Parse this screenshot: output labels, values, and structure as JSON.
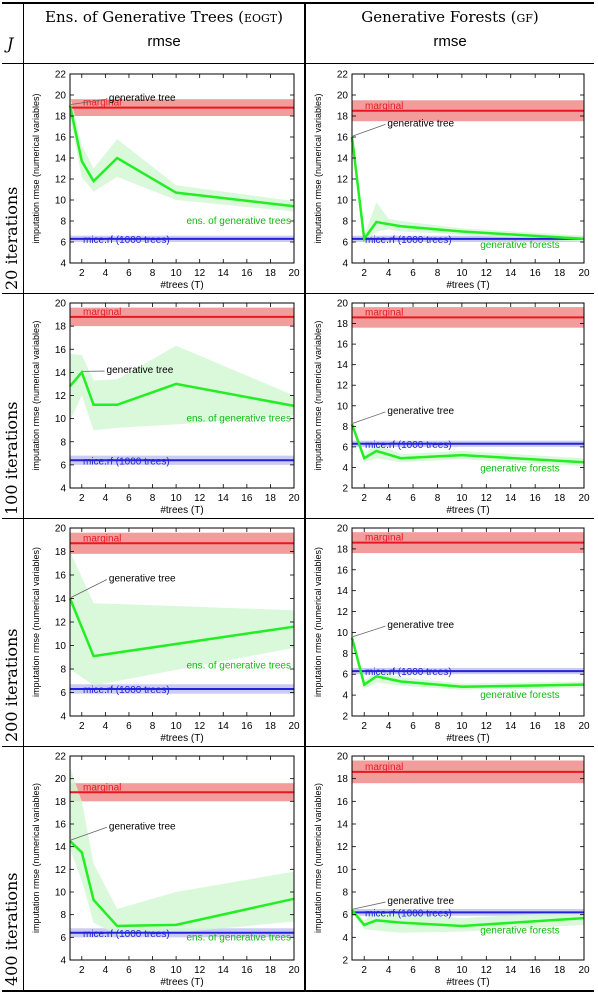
{
  "table": {
    "corner_label": "J",
    "columns": [
      {
        "title": "Ens. of Generative Trees",
        "title_abbrev": "EOGT",
        "metric": "rmse"
      },
      {
        "title": "Generative Forests",
        "title_abbrev": "GF",
        "metric": "rmse"
      }
    ],
    "rows": [
      "20 iterations",
      "100 iterations",
      "200 iterations",
      "400 iterations"
    ]
  },
  "colors": {
    "marginal": "#e8191e",
    "marginal_band": "#f08b8b",
    "mice": "#2222dd",
    "mice_band": "#c7c7f2",
    "curve": "#22ee22",
    "curve_band": "#d4f7d4"
  },
  "chart_data": [
    {
      "type": "line",
      "panel": "EOGT - 20 iterations",
      "xlabel": "#trees (T)",
      "ylabel": "imputation rmse (numerical variables)",
      "xlim": [
        1,
        20
      ],
      "ylim": [
        4,
        22
      ],
      "xticks": [
        2,
        4,
        6,
        8,
        10,
        12,
        14,
        16,
        18,
        20
      ],
      "yticks": [
        4,
        6,
        8,
        10,
        12,
        14,
        16,
        18,
        20,
        22
      ],
      "series": [
        {
          "name": "ens. of generative trees",
          "x": [
            1,
            2,
            3,
            5,
            10,
            20
          ],
          "y": [
            19.0,
            13.7,
            11.8,
            14.0,
            10.7,
            9.4
          ],
          "lower": [
            17.8,
            12.2,
            10.8,
            12.2,
            10.0,
            8.9
          ],
          "upper": [
            20.0,
            15.2,
            13.0,
            15.8,
            11.4,
            9.9
          ]
        }
      ],
      "annotations": {
        "marginal": 18.8,
        "marginal_band": [
          18.0,
          19.6
        ],
        "mice": 6.3,
        "mice_band": [
          6.0,
          6.6
        ],
        "marginal_label": "marginal",
        "mice_label": "mice.rf (1000 trees)",
        "tree_label": "generative tree",
        "tree_point": [
          1,
          19.0
        ],
        "tree_text_pos": [
          4.3,
          19.7
        ],
        "curve_label": "ens. of generative trees",
        "curve_label_pos": [
          20,
          8.0
        ]
      }
    },
    {
      "type": "line",
      "panel": "GF - 20 iterations",
      "xlabel": "#trees (T)",
      "ylabel": "imputation rmse (numerical variables)",
      "xlim": [
        1,
        20
      ],
      "ylim": [
        4,
        22
      ],
      "xticks": [
        2,
        4,
        6,
        8,
        10,
        12,
        14,
        16,
        18,
        20
      ],
      "yticks": [
        4,
        6,
        8,
        10,
        12,
        14,
        16,
        18,
        20,
        22
      ],
      "series": [
        {
          "name": "generative forests",
          "x": [
            1,
            2,
            3,
            4,
            5,
            10,
            20
          ],
          "y": [
            16.0,
            6.3,
            7.9,
            7.7,
            7.5,
            7.0,
            6.3
          ],
          "lower": [
            15.8,
            6.0,
            7.0,
            7.2,
            7.0,
            6.7,
            6.0
          ],
          "upper": [
            16.2,
            6.6,
            9.8,
            8.2,
            8.0,
            7.3,
            6.6
          ]
        }
      ],
      "annotations": {
        "marginal": 18.5,
        "marginal_band": [
          17.5,
          19.5
        ],
        "mice": 6.3,
        "mice_band": [
          6.0,
          6.6
        ],
        "marginal_label": "marginal",
        "mice_label": "mice.rf (1000 trees)",
        "tree_label": "generative tree",
        "tree_point": [
          1,
          16.0
        ],
        "tree_text_pos": [
          3.9,
          17.3
        ],
        "curve_label": "generative forests",
        "curve_label_pos": [
          15,
          5.7
        ]
      }
    },
    {
      "type": "line",
      "panel": "EOGT - 100 iterations",
      "xlabel": "#trees (T)",
      "ylabel": "imputation rmse (numerical variables)",
      "xlim": [
        1,
        20
      ],
      "ylim": [
        4,
        20
      ],
      "xticks": [
        2,
        4,
        6,
        8,
        10,
        12,
        14,
        16,
        18,
        20
      ],
      "yticks": [
        4,
        6,
        8,
        10,
        12,
        14,
        16,
        18,
        20
      ],
      "series": [
        {
          "name": "ens. of generative trees",
          "x": [
            1,
            2,
            3,
            5,
            10,
            20
          ],
          "y": [
            12.8,
            14.0,
            11.2,
            11.2,
            13.0,
            11.1
          ],
          "lower": [
            9.8,
            12.0,
            9.0,
            9.2,
            9.5,
            10.3
          ],
          "upper": [
            15.6,
            15.5,
            13.3,
            13.4,
            16.3,
            12.0
          ]
        }
      ],
      "annotations": {
        "marginal": 18.8,
        "marginal_band": [
          18.0,
          19.6
        ],
        "mice": 6.4,
        "mice_band": [
          6.0,
          6.8
        ],
        "marginal_label": "marginal",
        "mice_label": "mice.rf (1000 trees)",
        "tree_label": "generative tree",
        "tree_point": [
          2,
          14.0
        ],
        "tree_text_pos": [
          4.1,
          14.2
        ],
        "curve_label": "ens. of generative trees",
        "curve_label_pos": [
          20,
          10.0
        ]
      }
    },
    {
      "type": "line",
      "panel": "GF - 100 iterations",
      "xlabel": "#trees (T)",
      "ylabel": "imputation rmse (numerical variables)",
      "xlim": [
        1,
        20
      ],
      "ylim": [
        2,
        20
      ],
      "xticks": [
        2,
        4,
        6,
        8,
        10,
        12,
        14,
        16,
        18,
        20
      ],
      "yticks": [
        2,
        4,
        6,
        8,
        10,
        12,
        14,
        16,
        18,
        20
      ],
      "series": [
        {
          "name": "generative forests",
          "x": [
            1,
            2,
            3,
            5,
            10,
            20
          ],
          "y": [
            8.2,
            4.9,
            5.6,
            4.9,
            5.2,
            4.5
          ],
          "lower": [
            8.0,
            4.5,
            4.9,
            4.5,
            4.8,
            4.1
          ],
          "upper": [
            8.4,
            5.3,
            6.3,
            5.3,
            5.6,
            4.9
          ]
        }
      ],
      "annotations": {
        "marginal": 18.6,
        "marginal_band": [
          17.6,
          19.6
        ],
        "mice": 6.3,
        "mice_band": [
          6.0,
          6.6
        ],
        "marginal_label": "marginal",
        "mice_label": "mice.rf (1000 trees)",
        "tree_label": "generative tree",
        "tree_point": [
          1,
          8.2
        ],
        "tree_text_pos": [
          3.9,
          9.5
        ],
        "curve_label": "generative forests",
        "curve_label_pos": [
          15,
          3.9
        ]
      }
    },
    {
      "type": "line",
      "panel": "EOGT - 200 iterations",
      "xlabel": "#trees (T)",
      "ylabel": "imputation rmse (numerical variables)",
      "xlim": [
        1,
        20
      ],
      "ylim": [
        4,
        20
      ],
      "xticks": [
        2,
        4,
        6,
        8,
        10,
        12,
        14,
        16,
        18,
        20
      ],
      "yticks": [
        4,
        6,
        8,
        10,
        12,
        14,
        16,
        18,
        20
      ],
      "series": [
        {
          "name": "ens. of generative trees",
          "x": [
            1,
            3,
            20
          ],
          "y": [
            14.0,
            9.1,
            11.6
          ],
          "lower": [
            8.0,
            6.6,
            9.8
          ],
          "upper": [
            18.0,
            13.6,
            13.0
          ]
        }
      ],
      "annotations": {
        "marginal": 18.7,
        "marginal_band": [
          17.8,
          19.6
        ],
        "mice": 6.3,
        "mice_band": [
          5.9,
          6.7
        ],
        "marginal_label": "marginal",
        "mice_label": "mice.rf (1000 trees)",
        "tree_label": "generative tree",
        "tree_point": [
          1,
          14.0
        ],
        "tree_text_pos": [
          4.3,
          15.7
        ],
        "curve_label": "ens. of generative trees",
        "curve_label_pos": [
          20,
          8.3
        ]
      }
    },
    {
      "type": "line",
      "panel": "GF - 200 iterations",
      "xlabel": "#trees (T)",
      "ylabel": "imputation rmse (numerical variables)",
      "xlim": [
        1,
        20
      ],
      "ylim": [
        2,
        20
      ],
      "xticks": [
        2,
        4,
        6,
        8,
        10,
        12,
        14,
        16,
        18,
        20
      ],
      "yticks": [
        2,
        4,
        6,
        8,
        10,
        12,
        14,
        16,
        18,
        20
      ],
      "series": [
        {
          "name": "generative forests",
          "x": [
            1,
            2,
            3,
            5,
            10,
            20
          ],
          "y": [
            9.5,
            5.0,
            5.8,
            5.3,
            4.8,
            5.0
          ],
          "lower": [
            9.3,
            4.6,
            5.2,
            4.9,
            4.5,
            4.7
          ],
          "upper": [
            9.7,
            5.4,
            6.3,
            5.7,
            5.1,
            5.3
          ]
        }
      ],
      "annotations": {
        "marginal": 18.6,
        "marginal_band": [
          17.6,
          19.6
        ],
        "mice": 6.3,
        "mice_band": [
          6.0,
          6.6
        ],
        "marginal_label": "marginal",
        "mice_label": "mice.rf (1000 trees)",
        "tree_label": "generative tree",
        "tree_point": [
          1,
          9.5
        ],
        "tree_text_pos": [
          3.9,
          10.7
        ],
        "curve_label": "generative forests",
        "curve_label_pos": [
          15,
          4.0
        ]
      }
    },
    {
      "type": "line",
      "panel": "EOGT - 400 iterations",
      "xlabel": "#trees (T)",
      "ylabel": "imputation rmse (numerical variables)",
      "xlim": [
        1,
        20
      ],
      "ylim": [
        4,
        22
      ],
      "xticks": [
        2,
        4,
        6,
        8,
        10,
        12,
        14,
        16,
        18,
        20
      ],
      "yticks": [
        4,
        6,
        8,
        10,
        12,
        14,
        16,
        18,
        20,
        22
      ],
      "series": [
        {
          "name": "ens. of generative trees",
          "x": [
            1,
            2,
            3,
            5,
            10,
            20
          ],
          "y": [
            14.5,
            13.5,
            9.3,
            7.0,
            7.1,
            9.4
          ],
          "lower": [
            13.8,
            11.0,
            7.3,
            6.2,
            6.4,
            7.4
          ],
          "upper": [
            21.0,
            18.0,
            12.5,
            8.5,
            10.0,
            11.8
          ]
        }
      ],
      "annotations": {
        "marginal": 18.8,
        "marginal_band": [
          18.0,
          19.6
        ],
        "mice": 6.4,
        "mice_band": [
          6.0,
          6.8
        ],
        "marginal_label": "marginal",
        "mice_label": "mice.rf (1000 trees)",
        "tree_label": "generative tree",
        "tree_point": [
          1,
          14.5
        ],
        "tree_text_pos": [
          4.3,
          15.8
        ],
        "curve_label": "ens. of generative trees",
        "curve_label_pos": [
          20,
          6.0
        ]
      }
    },
    {
      "type": "line",
      "panel": "GF - 400 iterations",
      "xlabel": "#trees (T)",
      "ylabel": "imputation rmse (numerical variables)",
      "xlim": [
        1,
        20
      ],
      "ylim": [
        2,
        20
      ],
      "xticks": [
        2,
        4,
        6,
        8,
        10,
        12,
        14,
        16,
        18,
        20
      ],
      "yticks": [
        2,
        4,
        6,
        8,
        10,
        12,
        14,
        16,
        18,
        20
      ],
      "series": [
        {
          "name": "generative forests",
          "x": [
            1,
            2,
            3,
            5,
            10,
            20
          ],
          "y": [
            6.4,
            5.1,
            5.5,
            5.3,
            5.0,
            5.7
          ],
          "lower": [
            6.2,
            4.7,
            4.6,
            4.4,
            4.5,
            5.1
          ],
          "upper": [
            6.6,
            5.5,
            6.3,
            6.0,
            5.7,
            6.3
          ]
        }
      ],
      "annotations": {
        "marginal": 18.6,
        "marginal_band": [
          17.6,
          19.6
        ],
        "mice": 6.2,
        "mice_band": [
          5.9,
          6.5
        ],
        "marginal_label": "marginal",
        "mice_label": "mice.rf (1000 trees)",
        "tree_label": "generative tree",
        "tree_point": [
          1,
          6.4
        ],
        "tree_text_pos": [
          3.9,
          7.2
        ],
        "curve_label": "generative forests",
        "curve_label_pos": [
          15,
          4.6
        ]
      }
    }
  ]
}
